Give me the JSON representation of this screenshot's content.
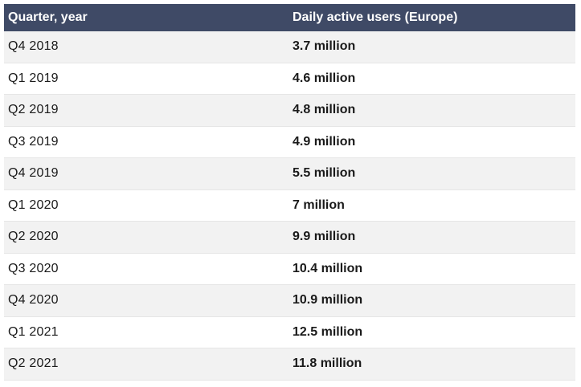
{
  "chart_data": {
    "type": "table",
    "columns": [
      "Quarter, year",
      "Daily active users (Europe)"
    ],
    "unit": "million",
    "rows": [
      {
        "quarter": "Q4 2018",
        "value": 3.7,
        "label": "3.7 million"
      },
      {
        "quarter": "Q1 2019",
        "value": 4.6,
        "label": "4.6 million"
      },
      {
        "quarter": "Q2 2019",
        "value": 4.8,
        "label": "4.8 million"
      },
      {
        "quarter": "Q3 2019",
        "value": 4.9,
        "label": "4.9 million"
      },
      {
        "quarter": "Q4 2019",
        "value": 5.5,
        "label": "5.5 million"
      },
      {
        "quarter": "Q1 2020",
        "value": 7,
        "label": "7 million"
      },
      {
        "quarter": "Q2 2020",
        "value": 9.9,
        "label": "9.9 million"
      },
      {
        "quarter": "Q3 2020",
        "value": 10.4,
        "label": "10.4 million"
      },
      {
        "quarter": "Q4 2020",
        "value": 10.9,
        "label": "10.9 million"
      },
      {
        "quarter": "Q1 2021",
        "value": 12.5,
        "label": "12.5 million"
      },
      {
        "quarter": "Q2 2021",
        "value": 11.8,
        "label": "11.8 million"
      }
    ]
  },
  "colors": {
    "header_bg": "#3f4a66",
    "header_text": "#ffffff",
    "row_alt_bg": "#f2f2f2",
    "row_bg": "#ffffff"
  }
}
